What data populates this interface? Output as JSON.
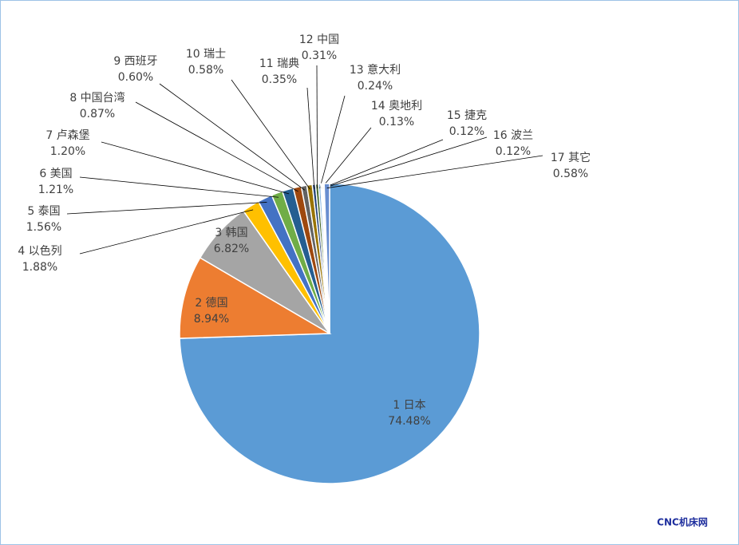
{
  "chart_data": {
    "type": "pie",
    "categories": [
      "1 日本",
      "2 德国",
      "3 韩国",
      "4 以色列",
      "5 泰国",
      "6 美国",
      "7 卢森堡",
      "8 中国台湾",
      "9 西班牙",
      "10 瑞士",
      "11 瑞典",
      "12 中国",
      "13 意大利",
      "14 奥地利",
      "15 捷克",
      "16 波兰",
      "17 其它"
    ],
    "values": [
      74.48,
      8.94,
      6.82,
      1.88,
      1.56,
      1.21,
      1.2,
      0.87,
      0.6,
      0.58,
      0.35,
      0.31,
      0.24,
      0.13,
      0.12,
      0.12,
      0.58
    ],
    "value_labels": [
      "74.48%",
      "8.94%",
      "6.82%",
      "1.88%",
      "1.56%",
      "1.21%",
      "1.20%",
      "0.87%",
      "0.60%",
      "0.58%",
      "0.35%",
      "0.31%",
      "0.24%",
      "0.13%",
      "0.12%",
      "0.12%",
      "0.58%"
    ],
    "colors": [
      "#5b9bd5",
      "#ed7d31",
      "#a5a5a5",
      "#ffc000",
      "#4472c4",
      "#70ad47",
      "#255e91",
      "#9e480e",
      "#636363",
      "#997300",
      "#264478",
      "#43682b",
      "#7cafdd",
      "#f1975a",
      "#b7b7b7",
      "#ffcd33",
      "#698ed0"
    ]
  },
  "watermark": "CNC机床网"
}
